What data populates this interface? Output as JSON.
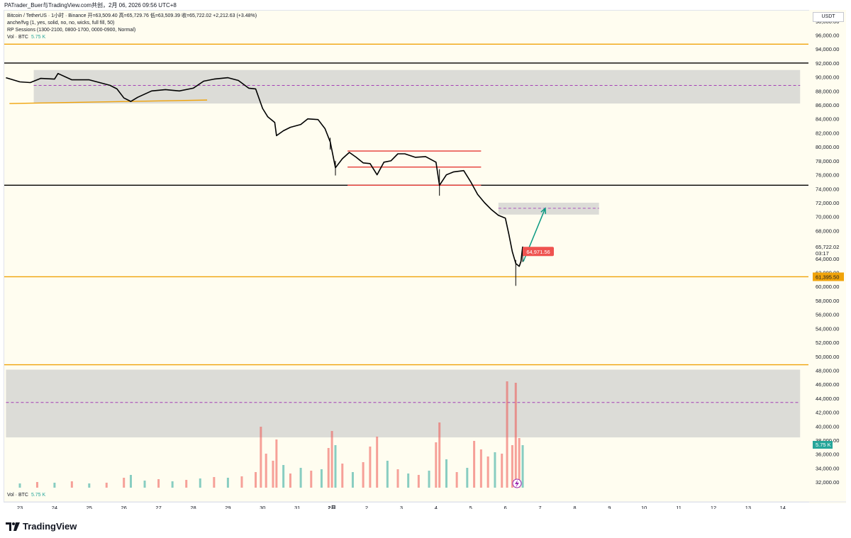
{
  "header": {
    "watermark": "PATrader_Buer与TradingView.com共创，2月 06, 2026 09:56 UTC+8"
  },
  "legend": {
    "line1": "Bitcoin / TetherUS · 1小时 · Binance  开=63,509.40  高=65,729.76  低=63,509.39  收=65,722.02  +2,212.63 (+3.48%)",
    "line2": "anche/fvg (1, yes, solid, no, no, wicks, full fill, 50)",
    "line3": "RP Sessions (1300-2100, 0800-1700, 0000-0900, Normal)",
    "vol_label": "Vol · BTC",
    "vol_value": "5.75 K"
  },
  "price_axis": {
    "currency": "USDT",
    "current_price": "65,722.02",
    "countdown": "03:17",
    "level_label": "61,395.50",
    "marker_label": "64,971.56",
    "vol_tag": "5.75 K",
    "hidden_label": "66,000.00"
  },
  "footer": {
    "brand": "TradingView"
  },
  "colors": {
    "up": "#26a69a",
    "down": "#ef5350",
    "orange": "#f0a30a",
    "red_line": "#e53935",
    "zone": "#d6d6d2",
    "zone_mid": "#9c27b0",
    "arrow": "#089981",
    "background": "#fffdf0"
  },
  "chart_data": {
    "type": "candlestick",
    "instrument": "Bitcoin / TetherUS",
    "interval": "1小时",
    "exchange": "Binance",
    "ylim": [
      31000,
      99500
    ],
    "y_ticks": [
      "32,000.00",
      "34,000.00",
      "36,000.00",
      "38,000.00",
      "40,000.00",
      "42,000.00",
      "44,000.00",
      "46,000.00",
      "48,000.00",
      "50,000.00",
      "52,000.00",
      "54,000.00",
      "56,000.00",
      "58,000.00",
      "60,000.00",
      "62,000.00",
      "64,000.00",
      "68,000.00",
      "70,000.00",
      "72,000.00",
      "74,000.00",
      "76,000.00",
      "78,000.00",
      "80,000.00",
      "82,000.00",
      "84,000.00",
      "86,000.00",
      "88,000.00",
      "90,000.00",
      "92,000.00",
      "94,000.00",
      "96,000.00",
      "98,000.00"
    ],
    "y_tick_values": [
      32000,
      34000,
      36000,
      38000,
      40000,
      42000,
      44000,
      46000,
      48000,
      50000,
      52000,
      54000,
      56000,
      58000,
      60000,
      62000,
      64000,
      68000,
      70000,
      72000,
      74000,
      76000,
      78000,
      80000,
      82000,
      84000,
      86000,
      88000,
      90000,
      92000,
      94000,
      96000,
      98000
    ],
    "x_labels": [
      "23",
      "24",
      "25",
      "26",
      "27",
      "28",
      "29",
      "30",
      "31",
      "2月",
      "2",
      "3",
      "4",
      "5",
      "6",
      "7",
      "8",
      "9",
      "10",
      "11",
      "12",
      "13",
      "14"
    ],
    "x_start": 22.6,
    "x_end": 45.0,
    "price_path": [
      [
        22.6,
        89900
      ],
      [
        23.0,
        89300
      ],
      [
        23.3,
        89200
      ],
      [
        23.6,
        89800
      ],
      [
        24.0,
        89700
      ],
      [
        24.1,
        90500
      ],
      [
        24.5,
        89600
      ],
      [
        25.0,
        89600
      ],
      [
        25.3,
        89200
      ],
      [
        25.6,
        88800
      ],
      [
        25.8,
        88300
      ],
      [
        26.0,
        87000
      ],
      [
        26.2,
        86500
      ],
      [
        26.4,
        87100
      ],
      [
        26.8,
        88000
      ],
      [
        27.2,
        88200
      ],
      [
        27.6,
        88000
      ],
      [
        28.0,
        88400
      ],
      [
        28.3,
        89400
      ],
      [
        28.6,
        89700
      ],
      [
        29.0,
        89900
      ],
      [
        29.3,
        89500
      ],
      [
        29.6,
        88400
      ],
      [
        29.8,
        88300
      ],
      [
        30.0,
        85500
      ],
      [
        30.15,
        84300
      ],
      [
        30.35,
        83500
      ],
      [
        30.4,
        81600
      ],
      [
        30.6,
        82300
      ],
      [
        30.8,
        82800
      ],
      [
        31.1,
        83200
      ],
      [
        31.3,
        84000
      ],
      [
        31.6,
        83900
      ],
      [
        31.8,
        82600
      ],
      [
        31.95,
        80700
      ],
      [
        32.1,
        77000
      ],
      [
        32.3,
        78300
      ],
      [
        32.5,
        79200
      ],
      [
        32.7,
        78500
      ],
      [
        32.9,
        77700
      ],
      [
        33.1,
        77600
      ],
      [
        33.3,
        76000
      ],
      [
        33.5,
        77800
      ],
      [
        33.7,
        78000
      ],
      [
        33.9,
        79000
      ],
      [
        34.1,
        79000
      ],
      [
        34.4,
        78500
      ],
      [
        34.7,
        78600
      ],
      [
        35.0,
        77800
      ],
      [
        35.1,
        74500
      ],
      [
        35.3,
        76000
      ],
      [
        35.5,
        76400
      ],
      [
        35.8,
        76600
      ],
      [
        36.0,
        75000
      ],
      [
        36.2,
        73200
      ],
      [
        36.4,
        72000
      ],
      [
        36.6,
        71000
      ],
      [
        36.8,
        70200
      ],
      [
        37.0,
        69800
      ],
      [
        37.1,
        67500
      ],
      [
        37.2,
        65000
      ],
      [
        37.3,
        63300
      ],
      [
        37.4,
        62900
      ],
      [
        37.45,
        63600
      ],
      [
        37.5,
        65700
      ]
    ],
    "candle_wicks": [
      [
        31.95,
        81300,
        79600
      ],
      [
        32.1,
        78000,
        75900
      ],
      [
        35.1,
        76800,
        73000
      ],
      [
        37.3,
        63800,
        60100
      ],
      [
        37.5,
        65729.76,
        63509.39
      ]
    ],
    "horizontal_levels": [
      {
        "price": 94700,
        "color": "orange"
      },
      {
        "price": 92000,
        "color": "black"
      },
      {
        "price": 74500,
        "color": "black"
      },
      {
        "price": 61395.5,
        "color": "orange"
      },
      {
        "price": 48800,
        "color": "orange"
      }
    ],
    "zones": [
      {
        "x0": 23.4,
        "x1": 45.5,
        "y0": 86200,
        "y1": 91000,
        "mid": 88800
      },
      {
        "x0": 36.8,
        "x1": 39.7,
        "y0": 70300,
        "y1": 72000,
        "mid": 71200
      },
      {
        "x0": 22.6,
        "x1": 45.5,
        "y0": 38400,
        "y1": 48100,
        "mid": 43400
      }
    ],
    "range_lines": [
      {
        "x0": 32.45,
        "x1": 36.3,
        "price": 79400
      },
      {
        "x0": 32.45,
        "x1": 36.3,
        "price": 77100
      },
      {
        "x0": 32.45,
        "x1": 36.3,
        "price": 74500
      }
    ],
    "trendline": {
      "x0": 22.7,
      "y0": 86200,
      "x1": 28.4,
      "y1": 86700
    },
    "projection_arrow": [
      [
        37.52,
        63600
      ],
      [
        38.15,
        71200
      ]
    ],
    "markers": {
      "countdown_box_price": 64971.56
    },
    "volume": {
      "max": 48800,
      "bars": [
        [
          23.0,
          6,
          "u"
        ],
        [
          23.5,
          8,
          "d"
        ],
        [
          24.0,
          7,
          "u"
        ],
        [
          24.5,
          9,
          "d"
        ],
        [
          25.0,
          6,
          "u"
        ],
        [
          25.5,
          7,
          "d"
        ],
        [
          26.0,
          14,
          "d"
        ],
        [
          26.2,
          18,
          "u"
        ],
        [
          26.6,
          10,
          "u"
        ],
        [
          27.0,
          12,
          "d"
        ],
        [
          27.4,
          9,
          "u"
        ],
        [
          27.8,
          11,
          "d"
        ],
        [
          28.2,
          13,
          "u"
        ],
        [
          28.6,
          15,
          "d"
        ],
        [
          29.0,
          14,
          "u"
        ],
        [
          29.4,
          16,
          "d"
        ],
        [
          29.8,
          22,
          "d"
        ],
        [
          29.95,
          86,
          "d"
        ],
        [
          30.1,
          48,
          "d"
        ],
        [
          30.3,
          38,
          "d"
        ],
        [
          30.4,
          68,
          "d"
        ],
        [
          30.6,
          32,
          "u"
        ],
        [
          30.8,
          20,
          "d"
        ],
        [
          31.1,
          28,
          "u"
        ],
        [
          31.4,
          24,
          "d"
        ],
        [
          31.7,
          26,
          "u"
        ],
        [
          31.9,
          56,
          "d"
        ],
        [
          32.0,
          80,
          "d"
        ],
        [
          32.1,
          60,
          "u"
        ],
        [
          32.3,
          34,
          "d"
        ],
        [
          32.6,
          22,
          "u"
        ],
        [
          32.9,
          36,
          "d"
        ],
        [
          33.1,
          58,
          "d"
        ],
        [
          33.3,
          72,
          "d"
        ],
        [
          33.6,
          38,
          "u"
        ],
        [
          33.9,
          26,
          "d"
        ],
        [
          34.2,
          20,
          "u"
        ],
        [
          34.5,
          18,
          "d"
        ],
        [
          34.8,
          24,
          "u"
        ],
        [
          35.0,
          64,
          "d"
        ],
        [
          35.1,
          92,
          "d"
        ],
        [
          35.3,
          40,
          "u"
        ],
        [
          35.6,
          22,
          "d"
        ],
        [
          35.9,
          28,
          "u"
        ],
        [
          36.1,
          66,
          "d"
        ],
        [
          36.3,
          54,
          "d"
        ],
        [
          36.5,
          44,
          "d"
        ],
        [
          36.7,
          50,
          "u"
        ],
        [
          36.9,
          48,
          "d"
        ],
        [
          37.05,
          150,
          "d"
        ],
        [
          37.2,
          60,
          "d"
        ],
        [
          37.3,
          148,
          "d"
        ],
        [
          37.4,
          70,
          "d"
        ],
        [
          37.5,
          60,
          "u"
        ]
      ]
    }
  }
}
